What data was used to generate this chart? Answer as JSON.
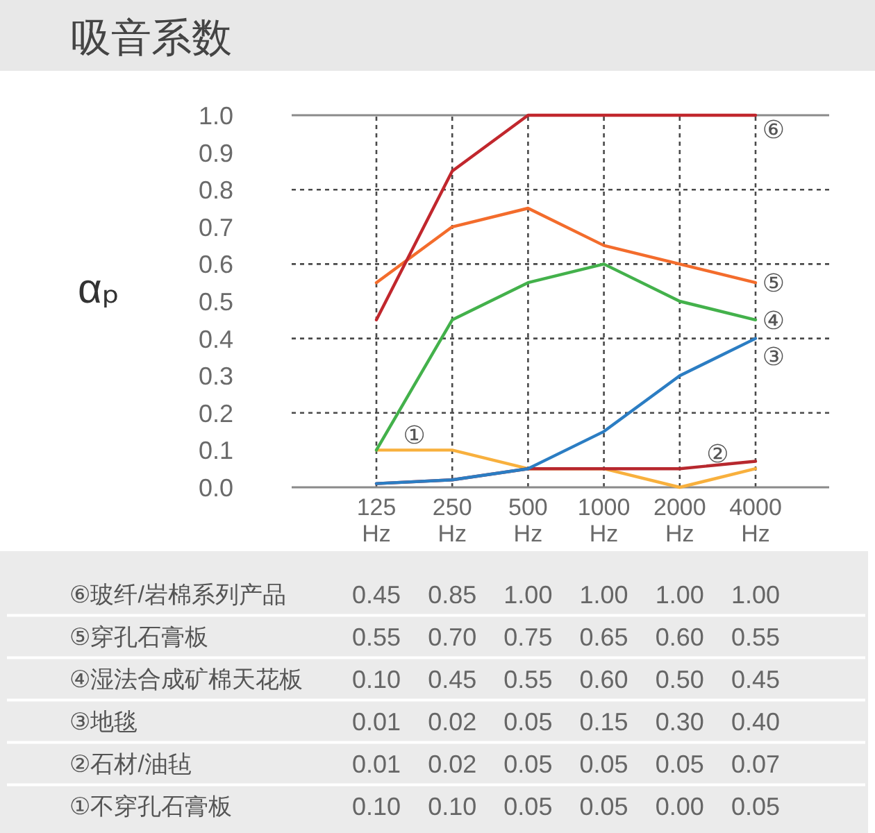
{
  "chart_data": {
    "type": "line",
    "title": "吸音系数",
    "ylabel": "αₚ",
    "categories": [
      "125 Hz",
      "250 Hz",
      "500 Hz",
      "1000 Hz",
      "2000 Hz",
      "4000 Hz"
    ],
    "ylim": [
      0,
      1
    ],
    "yticks": [
      {
        "value": 0,
        "label": "0.0"
      },
      0.1,
      0.2,
      0.3,
      0.4,
      0.5,
      0.6,
      0.7,
      0.8,
      0.9,
      {
        "value": 1,
        "label": "1.0"
      }
    ],
    "grid": true,
    "series": [
      {
        "color": "#c1272d",
        "values": [
          0.45,
          0.85,
          1.0,
          1.0,
          1.0,
          1.0
        ],
        "value_labels": [
          "0.45",
          "0.85",
          "1.00",
          "1.00",
          "1.00",
          "1.00"
        ]
      },
      {
        "color": "#f36c2c",
        "values": [
          0.55,
          0.7,
          0.75,
          0.65,
          0.6,
          0.55
        ],
        "value_labels": [
          "0.55",
          "0.70",
          "0.75",
          "0.65",
          "0.60",
          "0.55"
        ]
      },
      {
        "color": "#43b14b",
        "values": [
          0.1,
          0.45,
          0.55,
          0.6,
          0.5,
          0.45
        ],
        "value_labels": [
          "0.10",
          "0.45",
          "0.55",
          "0.60",
          "0.50",
          "0.45"
        ]
      },
      {
        "color": "#2b7dc3",
        "values": [
          0.01,
          0.02,
          0.05,
          0.15,
          0.3,
          0.4
        ],
        "value_labels": [
          "0.01",
          "0.02",
          "0.05",
          "0.15",
          "0.30",
          "0.40"
        ]
      },
      {
        "color": "#b7282e",
        "values": [
          0.01,
          0.02,
          0.05,
          0.05,
          0.05,
          0.07
        ],
        "value_labels": [
          "0.01",
          "0.02",
          "0.05",
          "0.05",
          "0.05",
          "0.07"
        ]
      },
      {
        "color": "#f8b03d",
        "values": [
          0.1,
          0.1,
          0.05,
          0.05,
          0.0,
          0.05
        ],
        "value_labels": [
          "0.10",
          "0.10",
          "0.05",
          "0.05",
          "0.00",
          "0.05"
        ]
      }
    ],
    "annotations": [
      {
        "text": "⑥",
        "x": "4000 Hz",
        "y": 1.0
      },
      {
        "text": "⑤",
        "x": "4000 Hz",
        "y": 0.55
      },
      {
        "text": "④",
        "x": "4000 Hz",
        "y": 0.45
      },
      {
        "text": "③",
        "x": "4000 Hz",
        "y": 0.4
      },
      {
        "text": "②",
        "x": "2000 Hz",
        "y": 0.05
      },
      {
        "text": "①",
        "x": "125 Hz",
        "y": 0.1
      },
      "⑥玻纤/岩棉系列产品",
      "⑤穿孔石膏板",
      "④湿法合成矿棉天花板",
      "③地毯",
      "②石材/油毡",
      "①不穿孔石膏板"
    ]
  }
}
